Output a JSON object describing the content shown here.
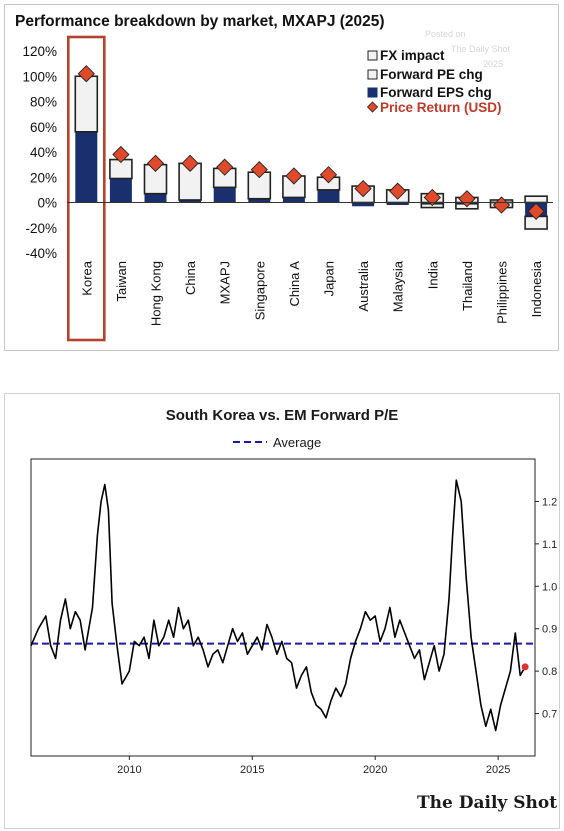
{
  "top_chart": {
    "title": "Performance breakdown by market, MXAPJ (2025)",
    "watermark": [
      "Posted on",
      "The Daily Shot",
      "2025"
    ],
    "legend": {
      "fx": "FX impact",
      "pe": "Forward PE chg",
      "eps": "Forward EPS chg",
      "price": "Price Return (USD)"
    },
    "colors": {
      "eps": "#1a2f6d",
      "box_fill": "#f2f2f2",
      "box_edge": "#222222",
      "marker": "#e04a2a",
      "highlight": "#b5412e"
    }
  },
  "bottom_chart": {
    "title": "South Korea vs. EM Forward P/E",
    "legend_label": "Average",
    "brand": "The Daily Shot",
    "colors": {
      "line": "#000000",
      "average": "#1a1aa8",
      "last_point": "#e03030"
    }
  },
  "chart_data": [
    {
      "type": "bar",
      "title": "Performance breakdown by market, MXAPJ (2025)",
      "categories": [
        "Korea",
        "Taiwan",
        "Hong Kong",
        "China",
        "MXAPJ",
        "Singapore",
        "China A",
        "Japan",
        "Australia",
        "Malaysia",
        "India",
        "Thailand",
        "Philippines",
        "Indonesia"
      ],
      "highlight": "Korea",
      "ylim": [
        -40,
        120
      ],
      "yticks": [
        "120%",
        "100%",
        "80%",
        "60%",
        "40%",
        "20%",
        "0%",
        "-20%",
        "-40%"
      ],
      "series": [
        {
          "name": "Forward EPS chg",
          "values": [
            56,
            19,
            7,
            2,
            12,
            3,
            4,
            10,
            -3,
            -2,
            -1,
            -1,
            0,
            -11
          ]
        },
        {
          "name": "Forward PE chg",
          "values": [
            44,
            15,
            23,
            29,
            15,
            21,
            17,
            10,
            13,
            10,
            7,
            4,
            2,
            5
          ]
        },
        {
          "name": "FX impact",
          "values": [
            0,
            0,
            0,
            0,
            0,
            0,
            0,
            0,
            0,
            0,
            -3,
            -4,
            -4,
            -10
          ]
        },
        {
          "name": "Price Return (USD)",
          "values": [
            102,
            38,
            31,
            31,
            28,
            26,
            21,
            22,
            11,
            9,
            4,
            3,
            -2,
            -7
          ]
        }
      ]
    },
    {
      "type": "line",
      "title": "South Korea vs. EM Forward P/E",
      "xlim": [
        2006,
        2026.5
      ],
      "ylim": [
        0.6,
        1.3
      ],
      "xticks": [
        "2010",
        "2015",
        "2020",
        "2025"
      ],
      "yticks": [
        "0.7",
        "0.8",
        "0.9",
        "1.0",
        "1.1",
        "1.2"
      ],
      "average": 0.865,
      "last_value": 0.81,
      "series": [
        {
          "x": [
            2006.0,
            2006.3,
            2006.6,
            2006.8,
            2007.0,
            2007.2,
            2007.4,
            2007.6,
            2007.8,
            2008.0,
            2008.2,
            2008.5,
            2008.7,
            2008.85,
            2009.0,
            2009.15,
            2009.3,
            2009.5,
            2009.7,
            2009.9,
            2010.0,
            2010.2,
            2010.4,
            2010.6,
            2010.8,
            2011.0,
            2011.2,
            2011.4,
            2011.6,
            2011.8,
            2012.0,
            2012.2,
            2012.4,
            2012.6,
            2012.8,
            2013.0,
            2013.2,
            2013.4,
            2013.6,
            2013.8,
            2014.0,
            2014.2,
            2014.4,
            2014.6,
            2014.8,
            2015.0,
            2015.2,
            2015.4,
            2015.6,
            2015.8,
            2016.0,
            2016.2,
            2016.4,
            2016.6,
            2016.8,
            2017.0,
            2017.2,
            2017.4,
            2017.6,
            2017.8,
            2018.0,
            2018.2,
            2018.4,
            2018.6,
            2018.8,
            2019.0,
            2019.2,
            2019.4,
            2019.6,
            2019.8,
            2020.0,
            2020.2,
            2020.4,
            2020.6,
            2020.8,
            2021.0,
            2021.2,
            2021.4,
            2021.6,
            2021.8,
            2022.0,
            2022.2,
            2022.4,
            2022.6,
            2022.8,
            2023.0,
            2023.15,
            2023.3,
            2023.5,
            2023.7,
            2023.9,
            2024.1,
            2024.3,
            2024.5,
            2024.7,
            2024.9,
            2025.1,
            2025.3,
            2025.5,
            2025.7,
            2025.9,
            2026.1
          ],
          "values": [
            0.86,
            0.9,
            0.93,
            0.86,
            0.83,
            0.92,
            0.97,
            0.9,
            0.94,
            0.92,
            0.85,
            0.95,
            1.12,
            1.2,
            1.24,
            1.18,
            0.96,
            0.86,
            0.77,
            0.79,
            0.8,
            0.87,
            0.86,
            0.88,
            0.83,
            0.92,
            0.86,
            0.88,
            0.92,
            0.88,
            0.95,
            0.9,
            0.92,
            0.86,
            0.88,
            0.85,
            0.81,
            0.84,
            0.85,
            0.82,
            0.86,
            0.9,
            0.87,
            0.89,
            0.84,
            0.86,
            0.88,
            0.85,
            0.91,
            0.88,
            0.84,
            0.87,
            0.83,
            0.82,
            0.76,
            0.79,
            0.81,
            0.75,
            0.72,
            0.71,
            0.69,
            0.73,
            0.76,
            0.74,
            0.77,
            0.83,
            0.87,
            0.9,
            0.94,
            0.92,
            0.93,
            0.87,
            0.9,
            0.95,
            0.88,
            0.92,
            0.89,
            0.86,
            0.83,
            0.85,
            0.78,
            0.82,
            0.86,
            0.8,
            0.84,
            0.97,
            1.12,
            1.25,
            1.2,
            1.02,
            0.88,
            0.8,
            0.72,
            0.67,
            0.71,
            0.66,
            0.72,
            0.76,
            0.8,
            0.89,
            0.79,
            0.81
          ]
        }
      ]
    }
  ]
}
